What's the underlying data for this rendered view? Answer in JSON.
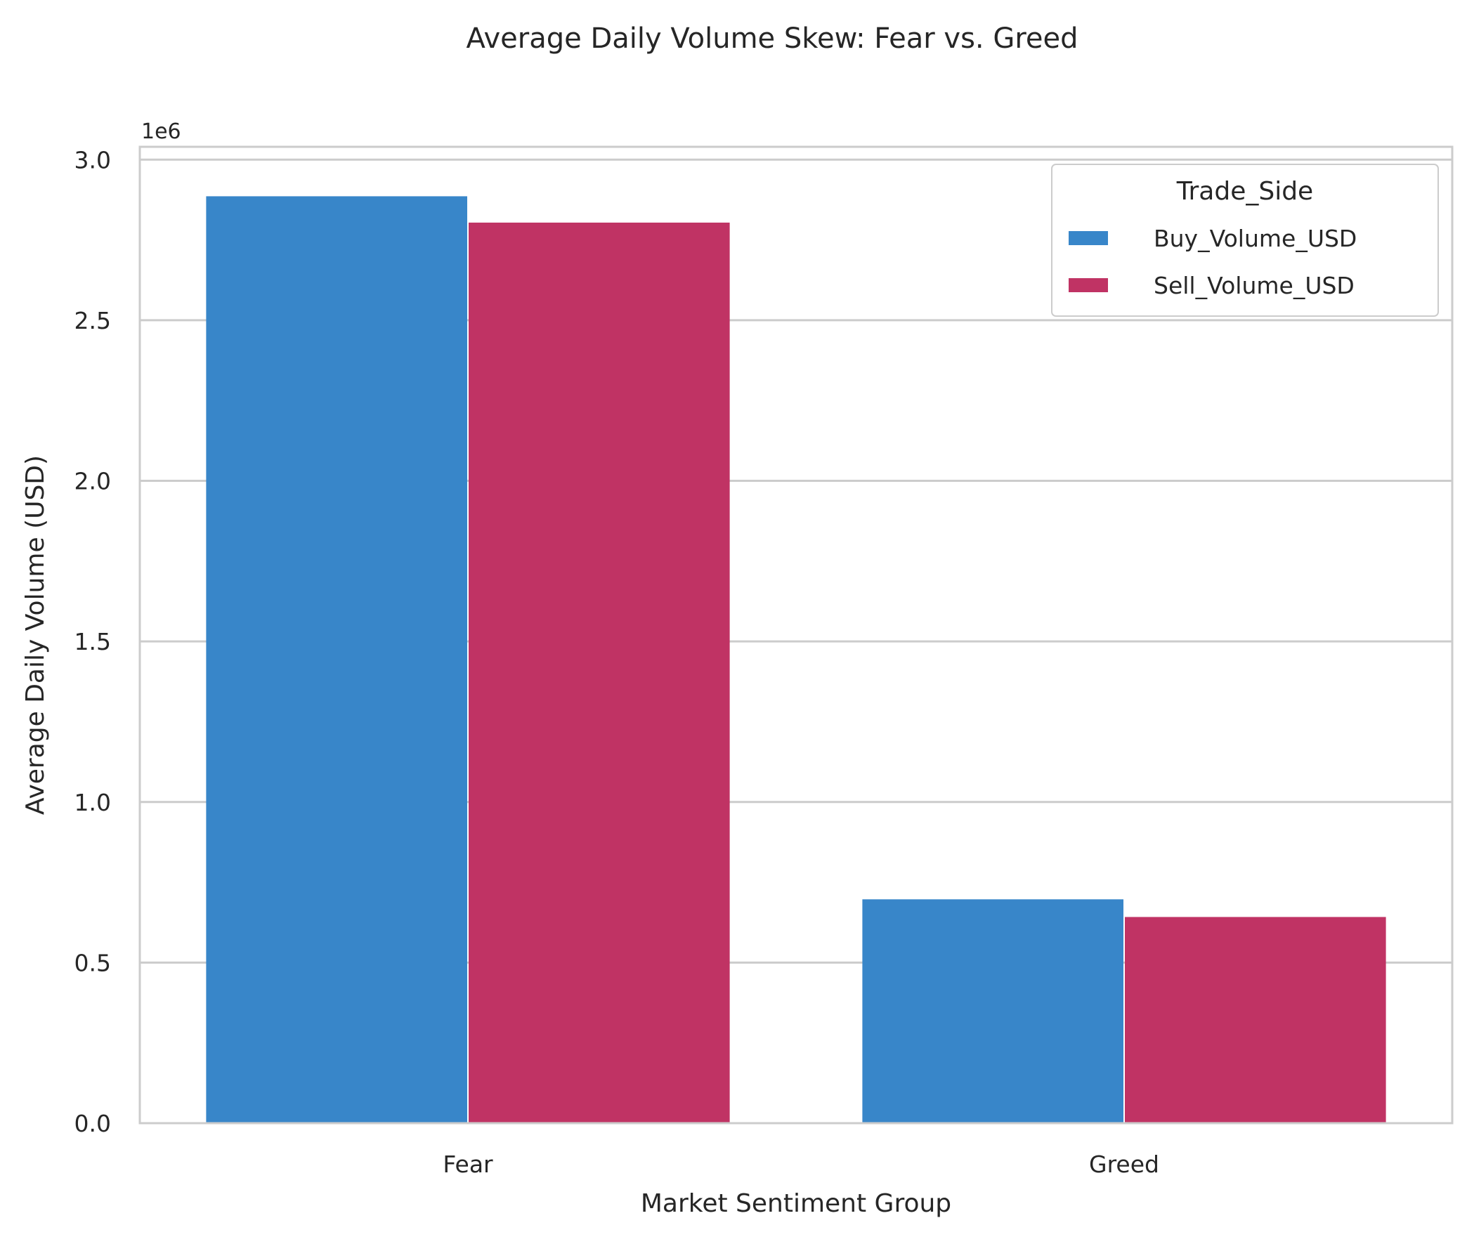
{
  "chart_data": {
    "type": "bar",
    "title": "Average Daily Volume Skew: Fear vs. Greed",
    "xlabel": "Market Sentiment Group",
    "ylabel": "Average Daily Volume (USD)",
    "y_multiplier_label": "1e6",
    "categories": [
      "Fear",
      "Greed"
    ],
    "series": [
      {
        "name": "Buy_Volume_USD",
        "color": "#3886c9",
        "values": [
          2886000,
          697000
        ]
      },
      {
        "name": "Sell_Volume_USD",
        "color": "#c03364",
        "values": [
          2804000,
          642000
        ]
      }
    ],
    "ylim": [
      0,
      3040000
    ],
    "yticks": [
      {
        "value": 0,
        "label": "0.0"
      },
      {
        "value": 500000,
        "label": "0.5"
      },
      {
        "value": 1000000,
        "label": "1.0"
      },
      {
        "value": 1500000,
        "label": "1.5"
      },
      {
        "value": 2000000,
        "label": "2.0"
      },
      {
        "value": 2500000,
        "label": "2.5"
      },
      {
        "value": 3000000,
        "label": "3.0"
      }
    ],
    "grid": true,
    "legend": {
      "title": "Trade_Side",
      "placement": "top-right"
    }
  }
}
